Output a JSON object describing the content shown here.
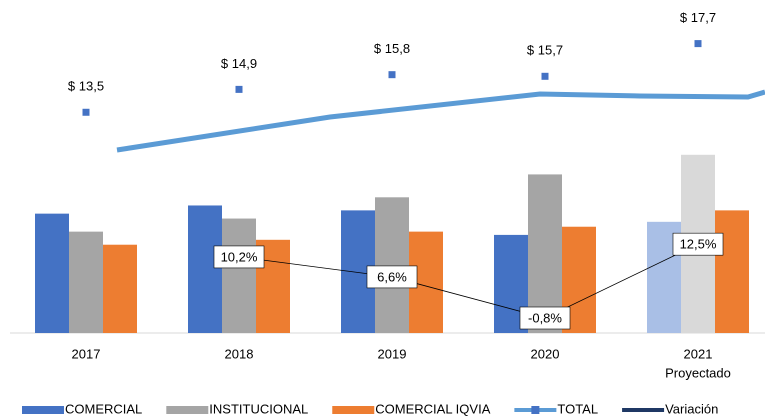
{
  "chart_data": {
    "type": "bar",
    "categories": [
      "2017",
      "2018",
      "2019",
      "2020",
      "2021"
    ],
    "annotations": [
      "Proyectado"
    ],
    "series": [
      {
        "name": "COMERCIAL",
        "color": "#4472c4",
        "projected_color": "#a9bfe6",
        "values": [
          7.3,
          7.8,
          7.5,
          6.0,
          6.8
        ]
      },
      {
        "name": "INSTITUCIONAL",
        "color": "#a5a5a5",
        "projected_color": "#d9d9d9",
        "values": [
          6.2,
          7.0,
          8.3,
          9.7,
          10.9
        ]
      },
      {
        "name": "COMERCIAL IQVIA",
        "color": "#ed7d31",
        "projected_color": "#ed7d31",
        "values": [
          5.4,
          5.7,
          6.2,
          6.5,
          7.5
        ]
      },
      {
        "name": "TOTAL",
        "type": "marker",
        "color": "#4472c4",
        "line_color": "#5b9bd5",
        "values": [
          13.5,
          14.9,
          15.8,
          15.7,
          17.7
        ],
        "value_labels": [
          "$ 13,5",
          "$ 14,9",
          "$ 15,8",
          "$ 15,7",
          "$ 17,7"
        ]
      },
      {
        "name": "Variación",
        "type": "line",
        "axis": "y2",
        "color": "#1f3864",
        "values": [
          null,
          10.2,
          6.6,
          -0.8,
          12.5
        ],
        "value_labels": [
          null,
          "10,2%",
          "6,6%",
          "-0,8%",
          "12,5%"
        ]
      }
    ],
    "ylim": [
      0,
      20
    ],
    "y2lim": [
      -3.5,
      55.4
    ]
  }
}
